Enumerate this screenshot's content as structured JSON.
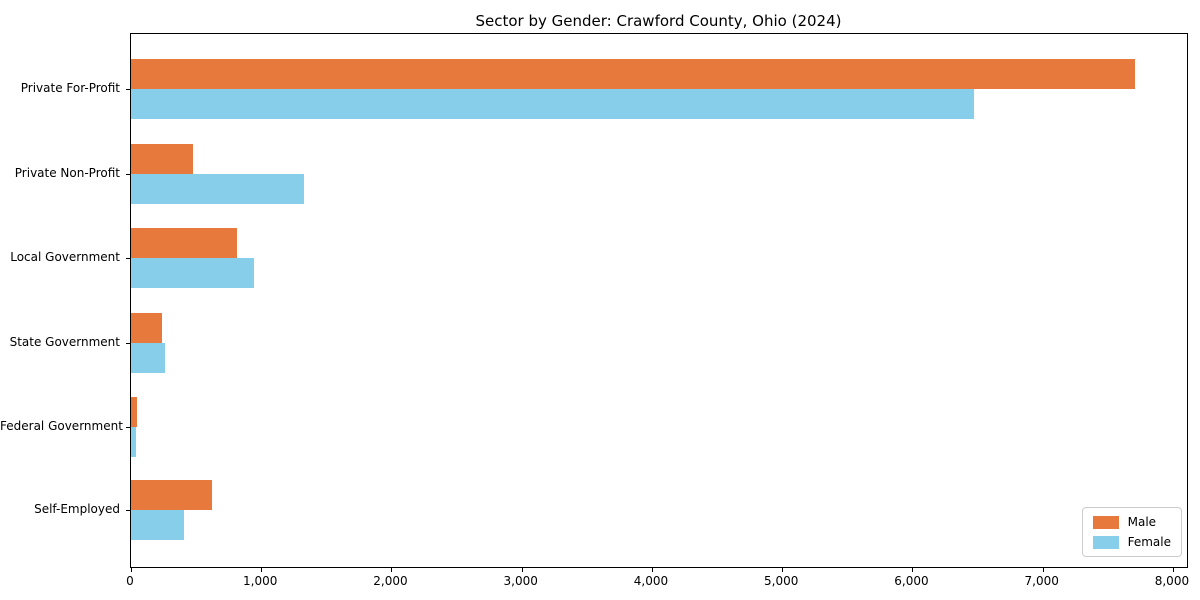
{
  "chart_data": {
    "type": "bar",
    "orientation": "horizontal",
    "title": "Sector by Gender: Crawford County, Ohio (2024)",
    "categories": [
      "Private For-Profit",
      "Private Non-Profit",
      "Local Government",
      "State Government",
      "Federal Government",
      "Self-Employed"
    ],
    "series": [
      {
        "name": "Male",
        "color": "#e8793c",
        "values": [
          7710,
          475,
          815,
          240,
          44,
          620
        ]
      },
      {
        "name": "Female",
        "color": "#87ceeb",
        "values": [
          6470,
          1330,
          945,
          260,
          36,
          405
        ]
      }
    ],
    "xlabel": "",
    "ylabel": "",
    "xlim": [
      0,
      8108
    ],
    "xticks": [
      0,
      1000,
      2000,
      3000,
      4000,
      5000,
      6000,
      7000,
      8000
    ],
    "xtick_labels": [
      "0",
      "1,000",
      "2,000",
      "3,000",
      "4,000",
      "5,000",
      "6,000",
      "7,000",
      "8,000"
    ],
    "grid": false,
    "legend": {
      "position": "lower right",
      "entries": [
        "Male",
        "Female"
      ]
    }
  }
}
